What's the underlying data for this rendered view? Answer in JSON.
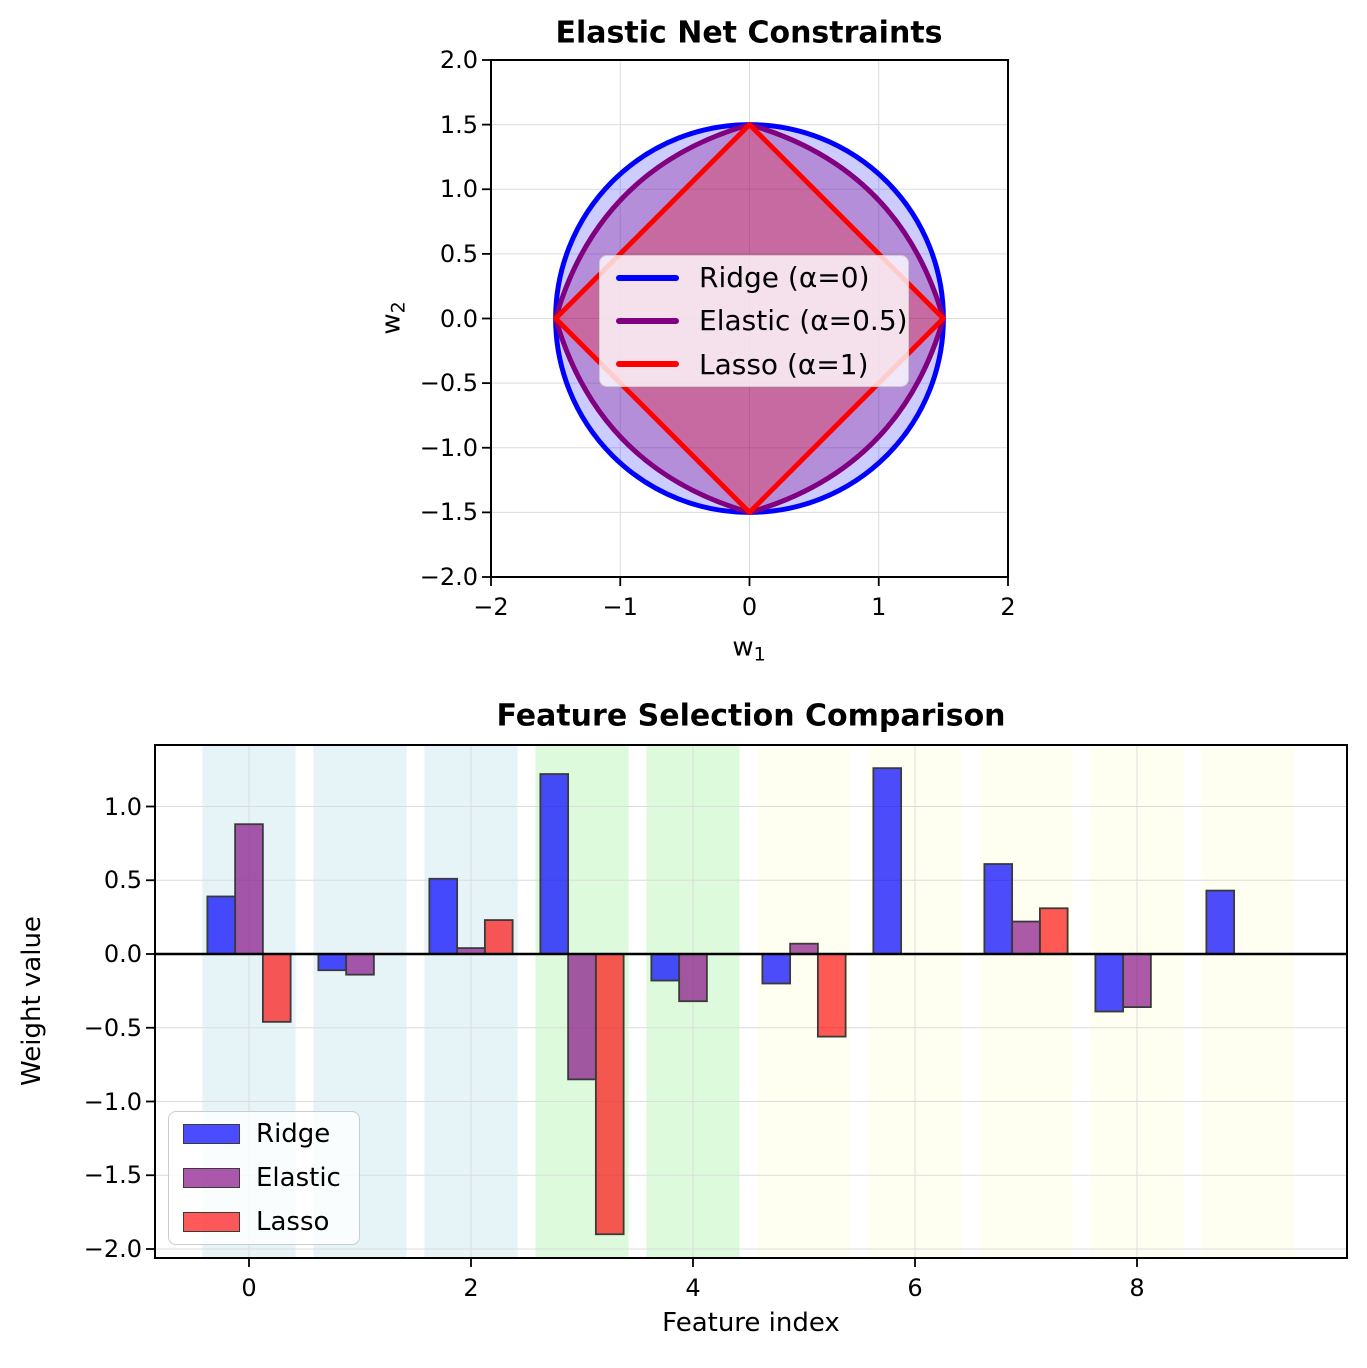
{
  "top_chart": {
    "title": "Elastic Net Constraints",
    "xlabel_base": "w",
    "xlabel_sub": "1",
    "ylabel_base": "w",
    "ylabel_sub": "2",
    "x_tick_labels": [
      "−2",
      "−1",
      "0",
      "1",
      "2"
    ],
    "y_tick_labels": [
      "2.0",
      "1.5",
      "1.0",
      "0.5",
      "0.0",
      "−0.5",
      "−1.0",
      "−1.5",
      "−2.0"
    ],
    "legend_items": [
      {
        "label": "Ridge (α=0)",
        "color": "#0000ff"
      },
      {
        "label": "Elastic (α=0.5)",
        "color": "#800080"
      },
      {
        "label": "Lasso (α=1)",
        "color": "#ff0000"
      }
    ]
  },
  "bottom_chart": {
    "title": "Feature Selection Comparison",
    "xlabel": "Feature index",
    "ylabel": "Weight value",
    "x_tick_labels": [
      "0",
      "2",
      "4",
      "6",
      "8"
    ],
    "y_tick_labels": [
      "1.0",
      "0.5",
      "0.0",
      "−0.5",
      "−1.0",
      "−1.5",
      "−2.0"
    ],
    "legend_items": [
      {
        "label": "Ridge",
        "color": "rgba(0,0,255,0.7)"
      },
      {
        "label": "Elastic",
        "color": "rgba(128,0,128,0.65)"
      },
      {
        "label": "Lasso",
        "color": "rgba(255,0,0,0.65)"
      }
    ]
  },
  "chart_data": [
    {
      "type": "line",
      "title": "Elastic Net Constraints",
      "xlabel": "w₁",
      "ylabel": "w₂",
      "xlim": [
        -2,
        2
      ],
      "ylim": [
        -2,
        2
      ],
      "x_ticks": [
        -2,
        -1,
        0,
        1,
        2
      ],
      "y_ticks": [
        2.0,
        1.5,
        1.0,
        0.5,
        0.0,
        -0.5,
        -1.0,
        -1.5,
        -2.0
      ],
      "grid": true,
      "legend_position": "center",
      "constraint_radius": 1.5,
      "series": [
        {
          "name": "Ridge (α=0)",
          "shape": "circle",
          "radius": 1.5,
          "line_color": "#0000ff",
          "fill_color": "rgba(0,0,255,0.2)",
          "line_width": 5
        },
        {
          "name": "Elastic (α=0.5)",
          "shape": "superellipse",
          "axis_intercept": 1.5,
          "diagonal_reach": 0.958,
          "bezier_control": 1.166,
          "line_color": "#800080",
          "fill_color": "rgba(128,0,128,0.3)",
          "line_width": 5
        },
        {
          "name": "Lasso (α=1)",
          "shape": "diamond",
          "axis_intercept": 1.5,
          "line_color": "#ff0000",
          "fill_color": "rgba(255,0,0,0.25)",
          "line_width": 5
        }
      ]
    },
    {
      "type": "bar",
      "title": "Feature Selection Comparison",
      "xlabel": "Feature index",
      "ylabel": "Weight value",
      "categories": [
        0,
        1,
        2,
        3,
        4,
        5,
        6,
        7,
        8,
        9
      ],
      "series": [
        {
          "name": "Ridge",
          "color": "rgba(0,0,255,0.7)",
          "values": [
            0.39,
            -0.11,
            0.51,
            1.22,
            -0.18,
            -0.2,
            1.26,
            0.61,
            -0.39,
            0.43
          ]
        },
        {
          "name": "Elastic",
          "color": "rgba(128,0,128,0.65)",
          "values": [
            0.88,
            -0.14,
            0.04,
            -0.85,
            -0.32,
            0.07,
            0.0,
            0.22,
            -0.36,
            0.0
          ]
        },
        {
          "name": "Lasso",
          "color": "rgba(255,0,0,0.65)",
          "values": [
            -0.46,
            0.0,
            0.23,
            -1.9,
            0.0,
            -0.56,
            0.0,
            0.31,
            0.0,
            0.0
          ]
        }
      ],
      "bar_width": 0.25,
      "bar_offsets": [
        -0.25,
        0,
        0.25
      ],
      "bar_edge_color": "#3a3a3a",
      "background_bands": [
        {
          "features": [
            0,
            1,
            2
          ],
          "color": "rgba(173,216,230,0.3)"
        },
        {
          "features": [
            3,
            4
          ],
          "color": "rgba(144,238,144,0.3)"
        },
        {
          "features": [
            5,
            6,
            7,
            8,
            9
          ],
          "color": "rgba(255,255,224,0.45)"
        }
      ],
      "band_half_width": 0.42,
      "x_ticks": [
        0,
        2,
        4,
        6,
        8
      ],
      "y_ticks": [
        1.0,
        0.5,
        0.0,
        -0.5,
        -1.0,
        -1.5,
        -2.0
      ],
      "xlim": [
        -0.85,
        9.89
      ],
      "ylim": [
        -2.07,
        1.42
      ],
      "grid": true,
      "zero_line": true,
      "legend_position": "lower left"
    }
  ]
}
